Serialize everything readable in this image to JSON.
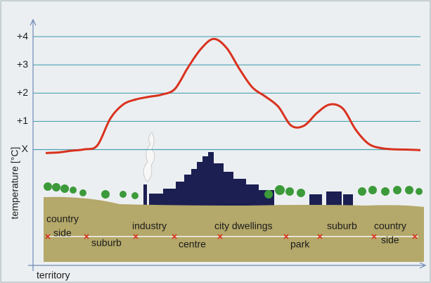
{
  "chart_data": {
    "type": "line",
    "ylabel": "temperature [°C]",
    "xlabel": "territory",
    "categories": [
      null,
      null,
      null,
      null,
      null,
      null,
      null,
      null,
      null,
      null,
      null,
      null,
      null,
      null,
      null,
      null,
      null,
      null,
      null,
      null,
      null,
      null,
      null,
      null,
      null,
      null,
      null,
      null,
      null,
      null
    ],
    "series": [
      {
        "color": "#d9321f",
        "values": [
          -0.12,
          -0.1,
          -0.04,
          0.01,
          0.15,
          1.1,
          1.6,
          1.78,
          1.87,
          1.95,
          2.15,
          2.9,
          3.56,
          3.92,
          3.6,
          2.85,
          2.2,
          1.88,
          1.52,
          0.85,
          0.85,
          1.3,
          1.6,
          1.45,
          0.7,
          0.2,
          0.05,
          0.01,
          0,
          -0.02
        ]
      }
    ],
    "ylim": [
      -4.1,
      4.6
    ],
    "yticks": [
      {
        "value": 0,
        "label": "X"
      },
      {
        "value": 1,
        "label": "+1"
      },
      {
        "value": 2,
        "label": "+2"
      },
      {
        "value": 3,
        "label": "+3"
      },
      {
        "value": 4,
        "label": "+4"
      }
    ],
    "grid": true,
    "annotations": [
      [
        "country",
        "side"
      ],
      [
        "suburb"
      ],
      [
        "industry"
      ],
      [
        "centre"
      ],
      [
        "city dwellings"
      ],
      [
        "park"
      ],
      [
        "suburb"
      ],
      [
        "country",
        "side"
      ]
    ]
  }
}
